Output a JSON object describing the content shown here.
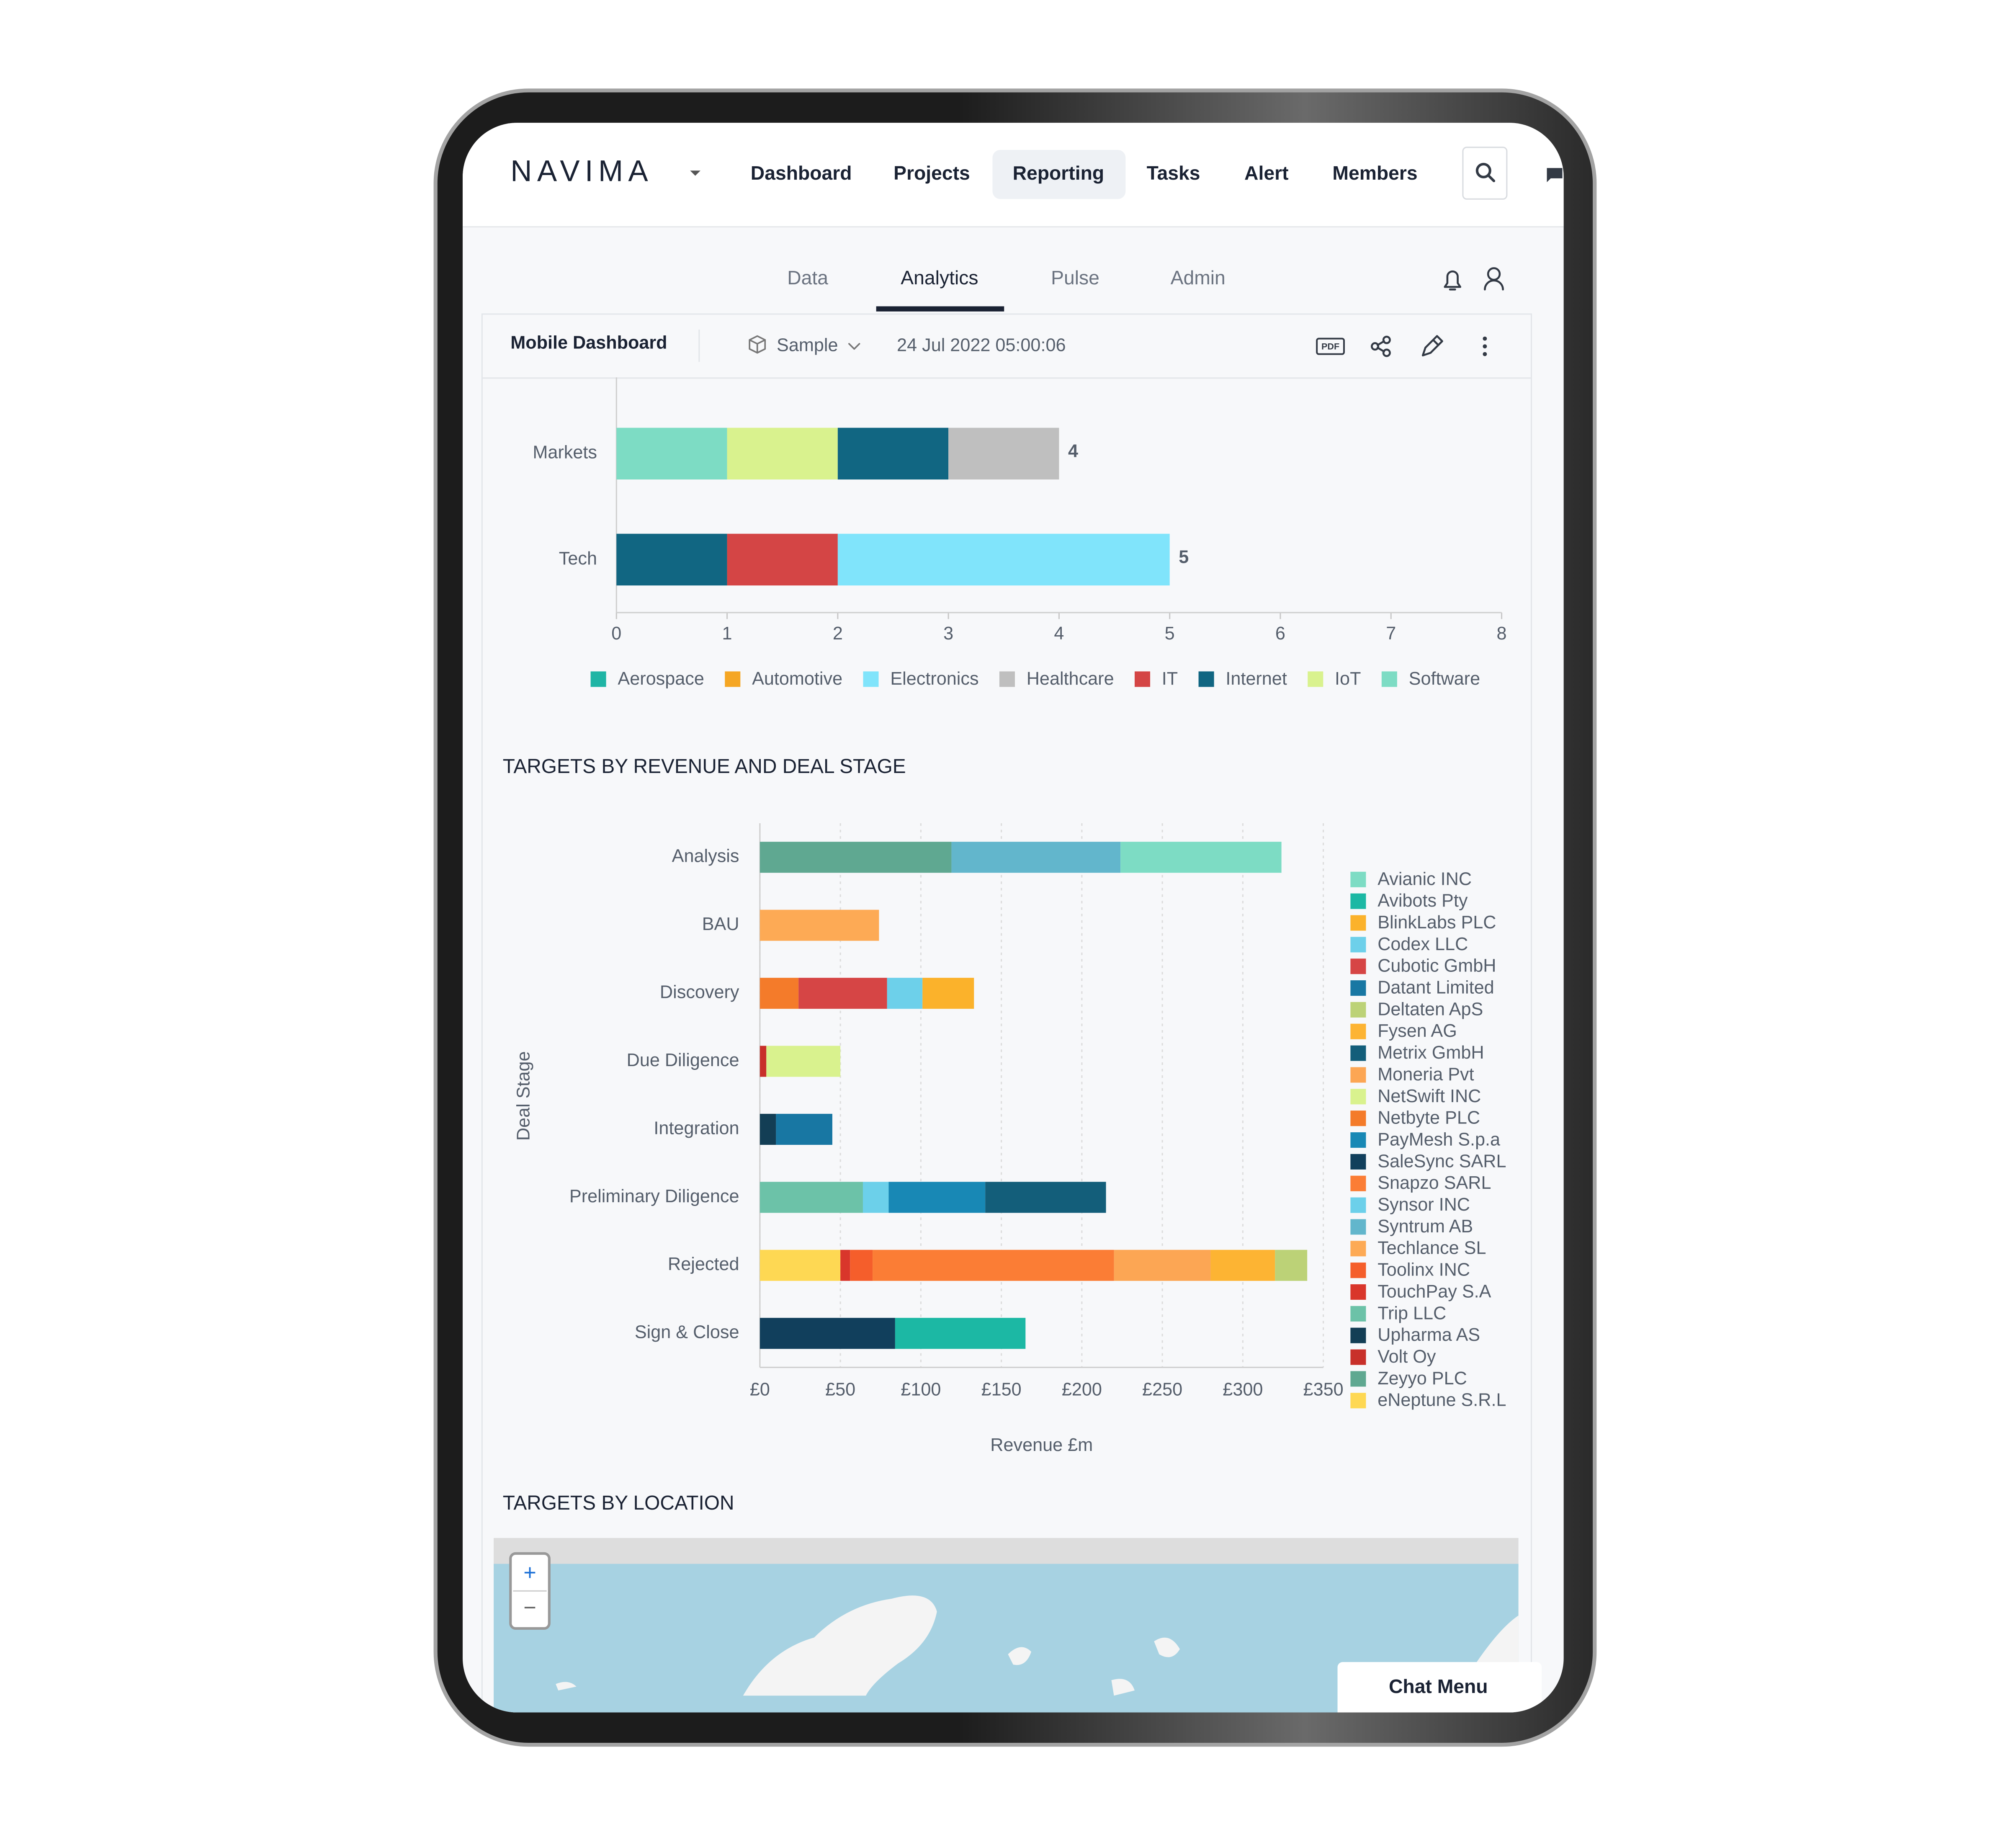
{
  "nav": {
    "logo": "NAVIMA",
    "items": [
      "Dashboard",
      "Projects",
      "Reporting",
      "Tasks",
      "Alert",
      "Members"
    ]
  },
  "tabs": [
    "Data",
    "Analytics",
    "Pulse",
    "Admin"
  ],
  "toolbar": {
    "title": "Mobile Dashboard",
    "dataset": "Sample",
    "timestamp": "24 Jul 2022 05:00:06",
    "export": "PDF"
  },
  "chart_data": [
    {
      "type": "bar",
      "orientation": "horizontal",
      "stacked": true,
      "legend": "bottom",
      "grid": false,
      "categories": [
        "Markets",
        "Tech"
      ],
      "series": [
        {
          "name": "Aerospace",
          "color": "#1fb5a5",
          "values": [
            null,
            null
          ]
        },
        {
          "name": "Automotive",
          "color": "#f5a623",
          "values": [
            null,
            null
          ]
        },
        {
          "name": "Electronics",
          "color": "#80e4fb",
          "values": [
            null,
            3
          ]
        },
        {
          "name": "Healthcare",
          "color": "#bfbfbf",
          "values": [
            1,
            null
          ]
        },
        {
          "name": "IT",
          "color": "#d44545",
          "values": [
            null,
            1
          ]
        },
        {
          "name": "Internet",
          "color": "#116682",
          "values": [
            1,
            1
          ]
        },
        {
          "name": "IoT",
          "color": "#d9f28e",
          "values": [
            1,
            null
          ]
        },
        {
          "name": "Software",
          "color": "#7ddcc4",
          "values": [
            1,
            null
          ]
        }
      ],
      "totals": [
        4,
        5
      ],
      "xlim": [
        0,
        8
      ],
      "xticks": [
        0,
        1,
        2,
        3,
        4,
        5,
        6,
        7,
        8
      ]
    },
    {
      "type": "bar",
      "orientation": "horizontal",
      "stacked": true,
      "legend": "right",
      "grid": true,
      "title": "TARGETS BY REVENUE AND DEAL STAGE",
      "xlabel": "Revenue £m",
      "ylabel": "Deal Stage",
      "categories": [
        "Analysis",
        "BAU",
        "Discovery",
        "Due Diligence",
        "Integration",
        "Preliminary Diligence",
        "Rejected",
        "Sign & Close"
      ],
      "series": [
        {
          "name": "Avianic INC",
          "color": "#7ddcc4",
          "values": [
            100,
            null,
            null,
            null,
            null,
            null,
            null,
            null
          ]
        },
        {
          "name": "Avibots Pty",
          "color": "#1cb8a4",
          "values": [
            null,
            null,
            null,
            null,
            null,
            null,
            null,
            81
          ]
        },
        {
          "name": "BlinkLabs PLC",
          "color": "#fbb22b",
          "values": [
            null,
            null,
            32,
            null,
            null,
            null,
            null,
            null
          ]
        },
        {
          "name": "Codex LLC",
          "color": "#6dd0ea",
          "values": [
            null,
            null,
            22,
            null,
            null,
            null,
            null,
            null
          ]
        },
        {
          "name": "Cubotic GmbH",
          "color": "#d64545",
          "values": [
            null,
            null,
            55,
            null,
            null,
            null,
            null,
            null
          ]
        },
        {
          "name": "Datant Limited",
          "color": "#1877a3",
          "values": [
            null,
            null,
            null,
            null,
            35,
            null,
            null,
            null
          ]
        },
        {
          "name": "Deltaten ApS",
          "color": "#bcd277",
          "values": [
            null,
            null,
            null,
            null,
            null,
            null,
            20,
            null
          ]
        },
        {
          "name": "Fysen AG",
          "color": "#fdb433",
          "values": [
            null,
            null,
            null,
            null,
            null,
            null,
            40,
            null
          ]
        },
        {
          "name": "Metrix GmbH",
          "color": "#135e7a",
          "values": [
            null,
            null,
            null,
            null,
            null,
            75,
            null,
            null
          ]
        },
        {
          "name": "Moneria Pvt",
          "color": "#fca654",
          "values": [
            null,
            null,
            null,
            null,
            null,
            null,
            60,
            null
          ]
        },
        {
          "name": "NetSwift INC",
          "color": "#d9f28e",
          "values": [
            null,
            null,
            null,
            46,
            null,
            null,
            null,
            null
          ]
        },
        {
          "name": "Netbyte PLC",
          "color": "#f47b2a",
          "values": [
            null,
            null,
            24,
            null,
            null,
            null,
            null,
            null
          ]
        },
        {
          "name": "PayMesh S.p.a",
          "color": "#1888b5",
          "values": [
            null,
            null,
            null,
            null,
            null,
            60,
            null,
            null
          ]
        },
        {
          "name": "SaleSync SARL",
          "color": "#113f5c",
          "values": [
            null,
            null,
            null,
            null,
            null,
            null,
            null,
            84
          ]
        },
        {
          "name": "Snapzo SARL",
          "color": "#fb7d35",
          "values": [
            null,
            null,
            null,
            null,
            null,
            null,
            150,
            null
          ]
        },
        {
          "name": "Synsor INC",
          "color": "#6cd0ea",
          "values": [
            null,
            null,
            null,
            null,
            null,
            16,
            null,
            null
          ]
        },
        {
          "name": "Syntrum AB",
          "color": "#62b6cc",
          "values": [
            105,
            null,
            null,
            null,
            null,
            null,
            null,
            null
          ]
        },
        {
          "name": "Techlance SL",
          "color": "#fdaa55",
          "values": [
            null,
            74,
            null,
            null,
            null,
            null,
            null,
            null
          ]
        },
        {
          "name": "Toolinx INC",
          "color": "#f55e2b",
          "values": [
            null,
            null,
            null,
            null,
            null,
            null,
            14,
            null
          ]
        },
        {
          "name": "TouchPay S.A",
          "color": "#d9362b",
          "values": [
            null,
            null,
            null,
            null,
            null,
            null,
            6,
            null
          ]
        },
        {
          "name": "Trip LLC",
          "color": "#6cc2a8",
          "values": [
            null,
            null,
            null,
            null,
            null,
            64,
            null,
            null
          ]
        },
        {
          "name": "Upharma AS",
          "color": "#133e55",
          "values": [
            null,
            null,
            null,
            null,
            10,
            null,
            null,
            null
          ]
        },
        {
          "name": "Volt Oy",
          "color": "#c8302a",
          "values": [
            null,
            null,
            null,
            4,
            null,
            null,
            null,
            null
          ]
        },
        {
          "name": "Zeyyo PLC",
          "color": "#5fa891",
          "values": [
            119,
            null,
            null,
            null,
            null,
            null,
            null,
            null
          ]
        },
        {
          "name": "eNeptune S.R.L",
          "color": "#fed853",
          "values": [
            null,
            null,
            null,
            null,
            null,
            null,
            50,
            null
          ]
        }
      ],
      "xlim": [
        0,
        350
      ],
      "xticks": [
        {
          "value": 0,
          "label": "£0"
        },
        {
          "value": 50,
          "label": "£50"
        },
        {
          "value": 100,
          "label": "£100"
        },
        {
          "value": 150,
          "label": "£150"
        },
        {
          "value": 200,
          "label": "£200"
        },
        {
          "value": 250,
          "label": "£250"
        },
        {
          "value": 300,
          "label": "£300"
        },
        {
          "value": 350,
          "label": "£350"
        }
      ]
    }
  ],
  "map": {
    "title": "TARGETS BY LOCATION",
    "zoom_in": "+",
    "zoom_out": "−"
  },
  "chat_menu": "Chat Menu"
}
